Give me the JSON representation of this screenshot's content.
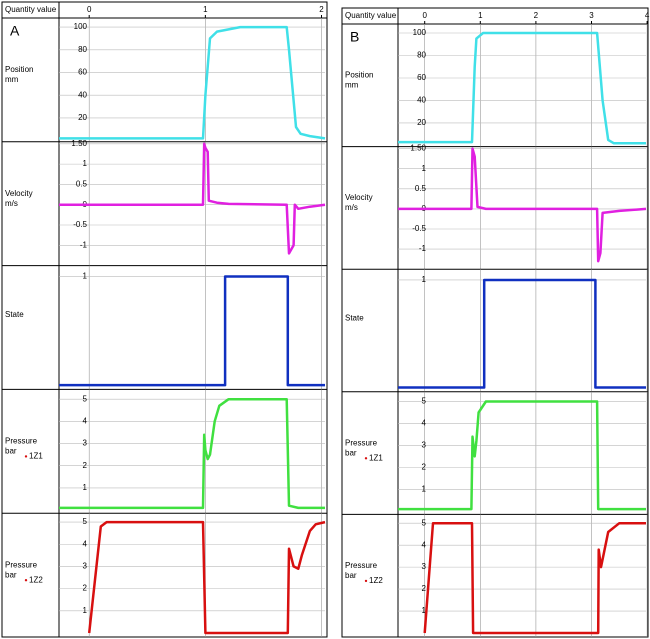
{
  "chart_data": [
    {
      "type": "line",
      "title": "A",
      "x_label": "Quantity value",
      "xlim": [
        -0.26,
        2.03
      ],
      "xticks": [
        0,
        1,
        2
      ],
      "grid": true,
      "series": [
        {
          "name": [
            "Position",
            "mm"
          ],
          "color": "#40e0e8",
          "ylim": [
            -1,
            108
          ],
          "yticks": [
            20,
            40,
            60,
            80,
            100
          ],
          "x": [
            -0.26,
            0.98,
            1.0,
            1.04,
            1.1,
            1.2,
            1.3,
            1.7,
            1.72,
            1.78,
            1.82,
            1.9,
            2.03
          ],
          "values": [
            2,
            2,
            40,
            90,
            96,
            98,
            100,
            100,
            80,
            12,
            6,
            4,
            2
          ]
        },
        {
          "name": [
            "Velocity",
            "m/s"
          ],
          "color": "#e020e0",
          "ylim": [
            -1.5,
            1.55
          ],
          "yticks": [
            -1,
            -0.5,
            0,
            0.5,
            1,
            {
              "value": 1.5,
              "label": "1.50"
            }
          ],
          "x": [
            -0.26,
            0.98,
            0.99,
            1.0,
            1.02,
            1.03,
            1.1,
            1.2,
            1.7,
            1.72,
            1.76,
            1.77,
            1.8,
            1.9,
            2.03
          ],
          "values": [
            0,
            0,
            1.5,
            1.4,
            1.3,
            0.1,
            0.05,
            0.02,
            0,
            -1.2,
            -1.0,
            0,
            -0.1,
            -0.05,
            0
          ]
        },
        {
          "name": [
            "State"
          ],
          "color": "#1030c0",
          "ylim": [
            -0.04,
            1.1
          ],
          "yticks": [
            1
          ],
          "x": [
            -0.26,
            1.17,
            1.17,
            1.71,
            1.71,
            2.03
          ],
          "values": [
            0,
            0,
            1,
            1,
            0,
            0
          ]
        },
        {
          "name": [
            "Pressure",
            "bar"
          ],
          "tag": "1Z1",
          "color": "#40e040",
          "ylim": [
            -0.14,
            5.44
          ],
          "yticks": [
            1,
            2,
            3,
            4,
            5
          ],
          "x": [
            -0.26,
            0.98,
            0.99,
            1.0,
            1.02,
            1.04,
            1.08,
            1.12,
            1.2,
            1.7,
            1.72,
            1.8,
            2.03
          ],
          "values": [
            0.1,
            0.1,
            3.4,
            2.7,
            2.3,
            2.5,
            4.0,
            4.7,
            5,
            5,
            0.2,
            0.1,
            0.1
          ]
        },
        {
          "name": [
            "Pressure",
            "bar"
          ],
          "tag": "1Z2",
          "color": "#d81010",
          "ylim": [
            -0.18,
            5.4
          ],
          "yticks": [
            1,
            2,
            3,
            4,
            5
          ],
          "x": [
            0.0,
            0.1,
            0.15,
            0.98,
            1.0,
            1.71,
            1.72,
            1.76,
            1.8,
            1.83,
            1.9,
            1.95,
            2.03
          ],
          "values": [
            0,
            4.8,
            5,
            5,
            0,
            0,
            3.8,
            3.0,
            2.9,
            3.5,
            4.6,
            4.9,
            5
          ]
        }
      ]
    },
    {
      "type": "line",
      "title": "B",
      "x_label": "Quantity value",
      "xlim": [
        -0.48,
        3.98
      ],
      "xticks": [
        0,
        1,
        2,
        3,
        4
      ],
      "grid": true,
      "series": [
        {
          "name": [
            "Position",
            "mm"
          ],
          "color": "#40e0e8",
          "ylim": [
            -1,
            108
          ],
          "yticks": [
            20,
            40,
            60,
            80,
            100
          ],
          "x": [
            -0.48,
            0.85,
            0.9,
            0.93,
            1.05,
            3.1,
            3.2,
            3.3,
            3.4,
            3.98
          ],
          "values": [
            3,
            3,
            70,
            95,
            100,
            100,
            40,
            5,
            2,
            2
          ]
        },
        {
          "name": [
            "Velocity",
            "m/s"
          ],
          "color": "#e020e0",
          "ylim": [
            -1.5,
            1.55
          ],
          "yticks": [
            -1,
            -0.5,
            0,
            0.5,
            1,
            {
              "value": 1.5,
              "label": "1.50"
            }
          ],
          "x": [
            -0.48,
            0.84,
            0.86,
            0.9,
            0.95,
            1.1,
            3.1,
            3.12,
            3.16,
            3.2,
            3.5,
            3.98
          ],
          "values": [
            0,
            0,
            1.5,
            1.3,
            0.05,
            0,
            0,
            -1.3,
            -1.1,
            -0.1,
            -0.05,
            0
          ]
        },
        {
          "name": [
            "State"
          ],
          "color": "#1030c0",
          "ylim": [
            -0.04,
            1.1
          ],
          "yticks": [
            1
          ],
          "x": [
            -0.48,
            1.07,
            1.07,
            3.07,
            3.07,
            3.98
          ],
          "values": [
            0,
            0,
            1,
            1,
            0,
            0
          ]
        },
        {
          "name": [
            "Pressure",
            "bar"
          ],
          "tag": "1Z1",
          "color": "#40e040",
          "ylim": [
            -0.14,
            5.44
          ],
          "yticks": [
            1,
            2,
            3,
            4,
            5
          ],
          "x": [
            -0.48,
            0.84,
            0.86,
            0.9,
            0.93,
            0.97,
            1.1,
            3.1,
            3.12,
            3.98
          ],
          "values": [
            0.1,
            0.1,
            3.4,
            2.5,
            3.2,
            4.5,
            5,
            5,
            0.1,
            0.1
          ]
        },
        {
          "name": [
            "Pressure",
            "bar"
          ],
          "tag": "1Z2",
          "color": "#d81010",
          "ylim": [
            -0.18,
            5.4
          ],
          "yticks": [
            1,
            2,
            3,
            4,
            5
          ],
          "x": [
            0.0,
            0.15,
            0.85,
            0.87,
            3.12,
            3.13,
            3.17,
            3.3,
            3.5,
            3.98
          ],
          "values": [
            0,
            5,
            5,
            0,
            0,
            3.8,
            3.0,
            4.6,
            5,
            5
          ]
        }
      ]
    }
  ]
}
